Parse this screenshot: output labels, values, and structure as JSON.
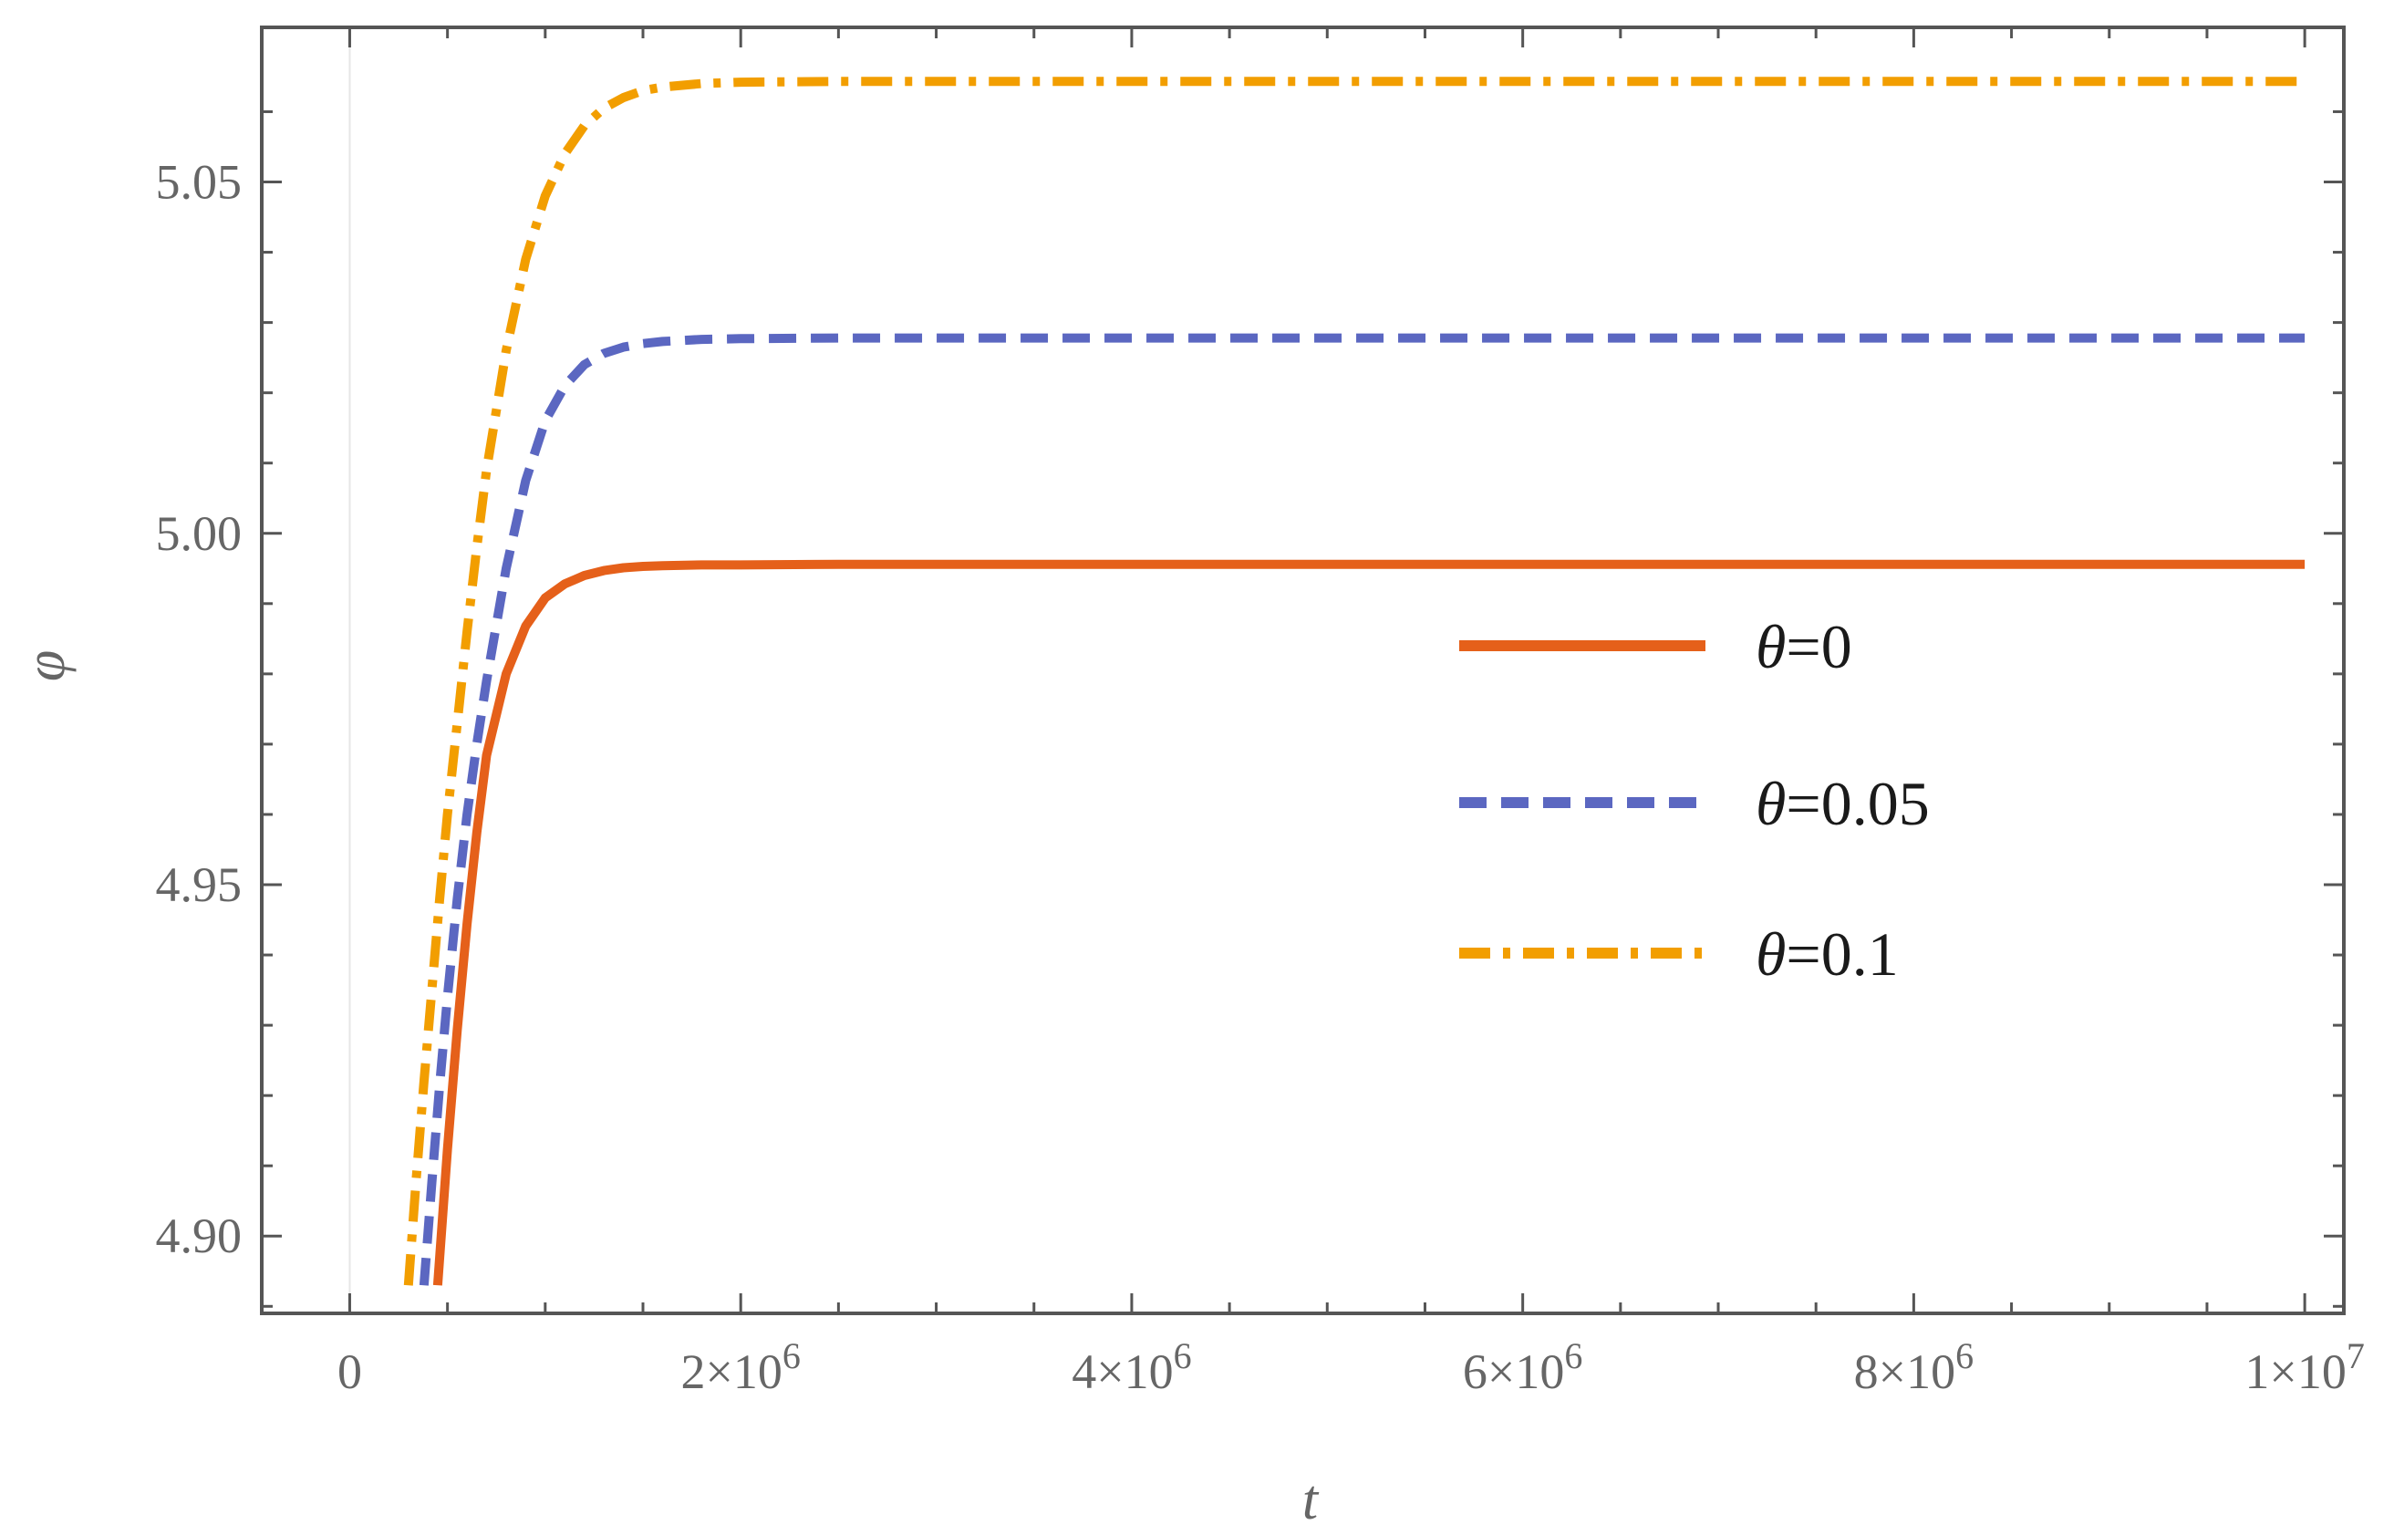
{
  "chart_data": {
    "type": "line",
    "title": "",
    "xlabel": "t",
    "ylabel": "φ",
    "xlim": [
      -450000.0,
      10200000.0
    ],
    "ylim": [
      4.889,
      5.072
    ],
    "x_ticks": [
      0,
      2000000.0,
      4000000.0,
      6000000.0,
      8000000.0,
      10000000.0
    ],
    "x_tick_labels": [
      {
        "base": "0",
        "exp": ""
      },
      {
        "base": "2×10",
        "exp": "6"
      },
      {
        "base": "4×10",
        "exp": "6"
      },
      {
        "base": "6×10",
        "exp": "6"
      },
      {
        "base": "8×10",
        "exp": "6"
      },
      {
        "base": "1×10",
        "exp": "7"
      }
    ],
    "y_ticks": [
      4.9,
      4.95,
      5.0,
      5.05
    ],
    "y_tick_labels": [
      "4.90",
      "4.95",
      "5.00",
      "5.05"
    ],
    "grid": false,
    "legend_position": "center-right",
    "series": [
      {
        "name": "θ=0",
        "name_greek": "θ",
        "name_rest": "=0",
        "color": "#E5601A",
        "style": "solid",
        "x": [
          450000,
          500000,
          550000,
          600000,
          650000,
          700000,
          800000,
          900000,
          1000000,
          1100000,
          1200000,
          1300000,
          1400000,
          1500000,
          1600000,
          1800000,
          2000000,
          2500000,
          3000000,
          4000000,
          6000000,
          8000000,
          10000000
        ],
        "y": [
          4.893,
          4.9123,
          4.9294,
          4.9444,
          4.9574,
          4.9684,
          4.98,
          4.9868,
          4.9908,
          4.9928,
          4.994,
          4.9947,
          4.9951,
          4.9953,
          4.9954,
          4.9955,
          4.9955,
          4.9956,
          4.9956,
          4.9956,
          4.9956,
          4.9956,
          4.9956
        ]
      },
      {
        "name": "θ=0.05",
        "name_greek": "θ",
        "name_rest": "=0.05",
        "color": "#5B67C1",
        "style": "dashed",
        "x": [
          380000,
          420000,
          460000,
          500000,
          550000,
          600000,
          650000,
          700000,
          800000,
          900000,
          1000000,
          1100000,
          1200000,
          1300000,
          1400000,
          1500000,
          1600000,
          1800000,
          2000000,
          2500000,
          3000000,
          4000000,
          6000000,
          8000000,
          10000000
        ],
        "y": [
          4.893,
          4.9076,
          4.9215,
          4.934,
          4.948,
          4.96,
          4.97,
          4.979,
          4.995,
          5.0075,
          5.016,
          5.021,
          5.024,
          5.0256,
          5.0265,
          5.027,
          5.0273,
          5.0276,
          5.0277,
          5.0278,
          5.0278,
          5.0278,
          5.0278,
          5.0278,
          5.0278
        ]
      },
      {
        "name": "θ=0.1",
        "name_greek": "θ",
        "name_rest": "=0.1",
        "color": "#F29E00",
        "style": "dashdot",
        "x": [
          300000,
          340000,
          380000,
          420000,
          460000,
          500000,
          550000,
          600000,
          650000,
          700000,
          800000,
          900000,
          1000000,
          1100000,
          1200000,
          1300000,
          1400000,
          1500000,
          1600000,
          1800000,
          2000000,
          2500000,
          3000000,
          4000000,
          6000000,
          8000000,
          10000000
        ],
        "y": [
          4.893,
          4.908,
          4.922,
          4.935,
          4.948,
          4.96,
          4.973,
          4.986,
          4.998,
          5.009,
          5.026,
          5.039,
          5.048,
          5.054,
          5.058,
          5.0605,
          5.062,
          5.063,
          5.0635,
          5.064,
          5.0642,
          5.0643,
          5.0643,
          5.0643,
          5.0643,
          5.0643,
          5.0643
        ]
      }
    ]
  }
}
